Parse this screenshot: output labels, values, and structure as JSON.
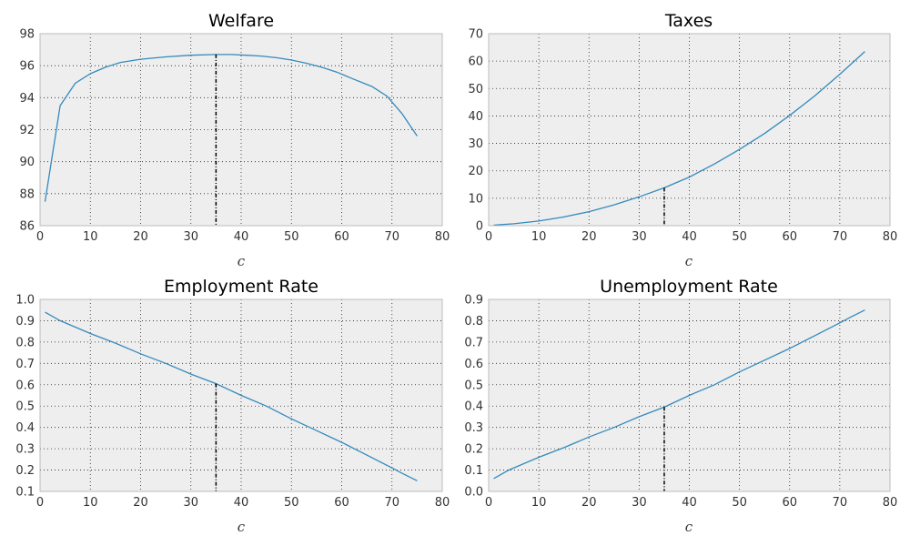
{
  "chart_data": [
    {
      "type": "line",
      "title": "Welfare",
      "xlabel": "c",
      "ylabel": "",
      "xlim": [
        0,
        80
      ],
      "ylim": [
        86,
        98
      ],
      "xticks": [
        0,
        10,
        20,
        30,
        40,
        50,
        60,
        70,
        80
      ],
      "yticks": [
        86,
        88,
        90,
        92,
        94,
        96,
        98
      ],
      "tick_decimals": 0,
      "grid": true,
      "line_color": "#348ABD",
      "marker_color": "#000000",
      "vline_x": 35,
      "x": [
        1,
        4,
        7,
        10,
        13,
        16,
        20,
        25,
        30,
        35,
        38,
        41,
        44,
        47,
        50,
        53,
        56,
        59,
        62,
        66,
        69,
        72,
        75
      ],
      "values": [
        87.5,
        93.5,
        94.9,
        95.5,
        95.9,
        96.2,
        96.4,
        96.55,
        96.65,
        96.7,
        96.7,
        96.65,
        96.6,
        96.5,
        96.35,
        96.15,
        95.9,
        95.6,
        95.2,
        94.7,
        94.1,
        93.0,
        91.6
      ]
    },
    {
      "type": "line",
      "title": "Taxes",
      "xlabel": "c",
      "ylabel": "",
      "xlim": [
        0,
        80
      ],
      "ylim": [
        0,
        70
      ],
      "xticks": [
        0,
        10,
        20,
        30,
        40,
        50,
        60,
        70,
        80
      ],
      "yticks": [
        0,
        10,
        20,
        30,
        40,
        50,
        60,
        70
      ],
      "tick_decimals": 0,
      "grid": true,
      "line_color": "#348ABD",
      "marker_color": "#000000",
      "vline_x": 35,
      "x": [
        1,
        5,
        10,
        15,
        20,
        25,
        30,
        35,
        40,
        45,
        50,
        55,
        60,
        65,
        70,
        75
      ],
      "values": [
        0.2,
        0.7,
        1.7,
        3.2,
        5.1,
        7.6,
        10.5,
        13.8,
        17.7,
        22.5,
        27.8,
        33.6,
        40.2,
        47.3,
        55.2,
        63.5
      ]
    },
    {
      "type": "line",
      "title": "Employment Rate",
      "xlabel": "c",
      "ylabel": "",
      "xlim": [
        0,
        80
      ],
      "ylim": [
        0.1,
        1.0
      ],
      "xticks": [
        0,
        10,
        20,
        30,
        40,
        50,
        60,
        70,
        80
      ],
      "yticks": [
        0.1,
        0.2,
        0.3,
        0.4,
        0.5,
        0.6,
        0.7,
        0.8,
        0.9,
        1.0
      ],
      "tick_decimals": 1,
      "grid": true,
      "line_color": "#348ABD",
      "marker_color": "#000000",
      "vline_x": 35,
      "x": [
        1,
        4,
        10,
        15,
        20,
        25,
        30,
        35,
        40,
        45,
        50,
        55,
        60,
        65,
        70,
        72,
        75
      ],
      "values": [
        0.94,
        0.9,
        0.84,
        0.795,
        0.745,
        0.7,
        0.65,
        0.605,
        0.55,
        0.5,
        0.44,
        0.385,
        0.33,
        0.27,
        0.21,
        0.185,
        0.15
      ]
    },
    {
      "type": "line",
      "title": "Unemployment Rate",
      "xlabel": "c",
      "ylabel": "",
      "xlim": [
        0,
        80
      ],
      "ylim": [
        0.0,
        0.9
      ],
      "xticks": [
        0,
        10,
        20,
        30,
        40,
        50,
        60,
        70,
        80
      ],
      "yticks": [
        0.0,
        0.1,
        0.2,
        0.3,
        0.4,
        0.5,
        0.6,
        0.7,
        0.8,
        0.9
      ],
      "tick_decimals": 1,
      "grid": true,
      "line_color": "#348ABD",
      "marker_color": "#000000",
      "vline_x": 35,
      "x": [
        1,
        4,
        10,
        15,
        20,
        25,
        30,
        35,
        40,
        45,
        50,
        55,
        60,
        65,
        70,
        72,
        75
      ],
      "values": [
        0.06,
        0.1,
        0.16,
        0.205,
        0.255,
        0.3,
        0.35,
        0.395,
        0.45,
        0.5,
        0.56,
        0.615,
        0.67,
        0.73,
        0.79,
        0.815,
        0.85
      ]
    }
  ]
}
